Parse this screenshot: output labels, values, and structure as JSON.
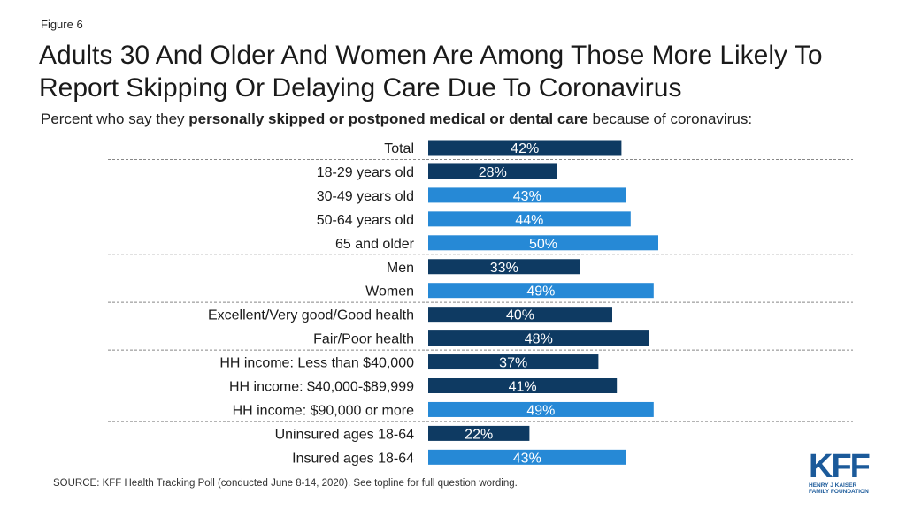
{
  "figure_label": "Figure 6",
  "title_line1": "Adults 30 And Older And Women Are Among Those More Likely To",
  "title_line2": "Report Skipping Or Delaying Care Due To Coronavirus",
  "subtitle_pre": "Percent who say they ",
  "subtitle_bold": "personally skipped or postponed medical or dental care",
  "subtitle_post": " because of coronavirus:",
  "source": "SOURCE: KFF Health Tracking Poll (conducted June 8-14, 2020). See topline for full question wording.",
  "logo": {
    "main": "KFF",
    "sub1": "HENRY J KAISER",
    "sub2": "FAMILY FOUNDATION"
  },
  "colors": {
    "dark": "#0e3a62",
    "light": "#2689d6",
    "divider": "#888888",
    "label_text": "#ffffff"
  },
  "chart_data": {
    "type": "bar",
    "orientation": "horizontal",
    "unit": "%",
    "xlim": [
      0,
      100
    ],
    "categories": [
      "Total",
      "18-29 years old",
      "30-49 years old",
      "50-64 years old",
      "65 and older",
      "Men",
      "Women",
      "Excellent/Very good/Good health",
      "Fair/Poor health",
      "HH income: Less than $40,000",
      "HH income: $40,000-$89,999",
      "HH income: $90,000 or more",
      "Uninsured ages 18-64",
      "Insured ages 18-64"
    ],
    "values": [
      42,
      28,
      43,
      44,
      50,
      33,
      49,
      40,
      48,
      37,
      41,
      49,
      22,
      43
    ],
    "labels": [
      "42%",
      "28%",
      "43%",
      "44%",
      "50%",
      "33%",
      "49%",
      "40%",
      "48%",
      "37%",
      "41%",
      "49%",
      "22%",
      "43%"
    ],
    "bar_color": [
      "dark",
      "dark",
      "light",
      "light",
      "light",
      "dark",
      "light",
      "dark",
      "dark",
      "dark",
      "dark",
      "light",
      "dark",
      "light"
    ],
    "groups_end_after": [
      0,
      4,
      6,
      8,
      11
    ]
  }
}
